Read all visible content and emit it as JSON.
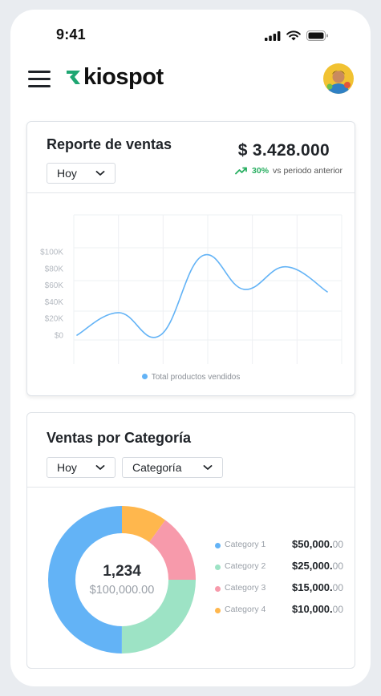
{
  "status_bar": {
    "time": "9:41"
  },
  "header": {
    "logo_text": "kiospot",
    "icons": {
      "menu": "hamburger-menu-icon",
      "logo": "kiospot-logo-mark",
      "avatar": "user-avatar"
    }
  },
  "sales_report": {
    "title": "Reporte de ventas",
    "period_select": "Hoy",
    "total": "$ 3.428.000",
    "trend_percent": "30%",
    "trend_text": "vs periodo anterior",
    "trend_color": "#27ae60",
    "legend_label": "Total productos vendidos"
  },
  "chart_data": {
    "type": "line",
    "title": "",
    "xlabel": "",
    "ylabel": "",
    "ylim": [
      0,
      100000
    ],
    "y_ticks": [
      "$0",
      "$20K",
      "$40K",
      "$60K",
      "$80K",
      "$100K"
    ],
    "y_tick_values": [
      0,
      20000,
      40000,
      60000,
      80000,
      100000
    ],
    "grid": true,
    "legend": "bottom-center",
    "series": [
      {
        "name": "Total productos vendidos",
        "color": "#63b3f6",
        "x": [
          0,
          1,
          2,
          3,
          4,
          5,
          6
        ],
        "values": [
          0,
          27000,
          0,
          95000,
          55000,
          82000,
          52000
        ]
      }
    ]
  },
  "category_sales": {
    "title": "Ventas por Categoría",
    "period_select": "Hoy",
    "category_select": "Categoría",
    "center_value": "1,234",
    "center_total": "$100,000.00",
    "categories": [
      {
        "name": "Category 1",
        "amount": "$50,000.",
        "decimals": "00",
        "color": "#63b3f6",
        "share": 0.5
      },
      {
        "name": "Category 2",
        "amount": "$25,000.",
        "decimals": "00",
        "color": "#9de3c5",
        "share": 0.25
      },
      {
        "name": "Category 3",
        "amount": "$15,000.",
        "decimals": "00",
        "color": "#f79aab",
        "share": 0.15
      },
      {
        "name": "Category 4",
        "amount": "$10,000.",
        "decimals": "00",
        "color": "#ffb74d",
        "share": 0.1
      }
    ]
  }
}
